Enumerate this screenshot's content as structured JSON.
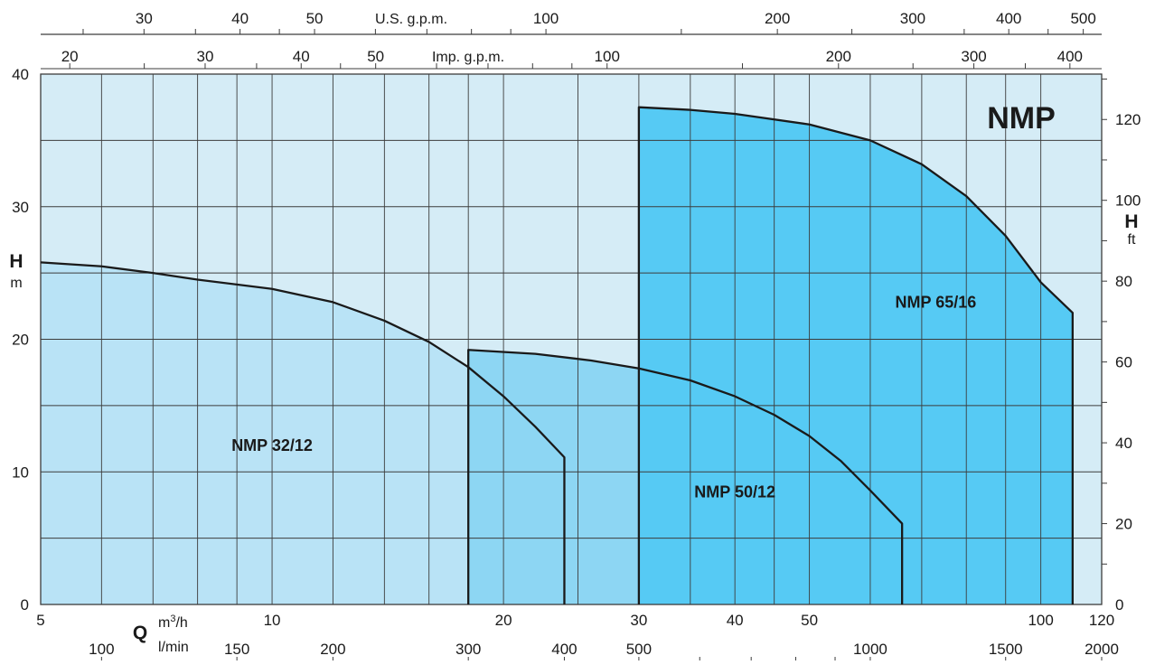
{
  "chart_data": {
    "type": "area",
    "title": "NMP",
    "colors": {
      "background": "#d5ecf6",
      "grid": "#3c3c3c",
      "curve": "#1a1a1a",
      "NMP 32/12": "#b9e3f6",
      "NMP 50/12": "#8dd6f3",
      "NMP 65/16": "#56caf4"
    },
    "x_scale": "log",
    "x_range_m3h": [
      5,
      120
    ],
    "y_left": {
      "symbol": "H",
      "unit": "m",
      "ylim": [
        0,
        40
      ],
      "ticks": [
        0,
        10,
        20,
        30,
        40
      ]
    },
    "y_right": {
      "symbol": "H",
      "unit": "ft",
      "ylim_ft": [
        0,
        131.2
      ],
      "ticks": [
        0,
        20,
        40,
        60,
        80,
        100,
        120
      ]
    },
    "x_axis_m3h": {
      "symbol": "Q",
      "unit_base": "m",
      "unit_sup": "3",
      "unit_rest": "/h",
      "ticks": [
        {
          "v": 5,
          "t": "5"
        },
        {
          "v": 10,
          "t": "10"
        },
        {
          "v": 20,
          "t": "20"
        },
        {
          "v": 30,
          "t": "30"
        },
        {
          "v": 40,
          "t": "40"
        },
        {
          "v": 50,
          "t": "50"
        },
        {
          "v": 100,
          "t": "100"
        },
        {
          "v": 120,
          "t": "120"
        }
      ]
    },
    "x_axis_lmin": {
      "unit": "l/min",
      "labels": [
        {
          "v": 100,
          "t": "100"
        },
        {
          "v": 150,
          "t": "150"
        },
        {
          "v": 200,
          "t": "200"
        },
        {
          "v": 300,
          "t": "300"
        },
        {
          "v": 400,
          "t": "400"
        },
        {
          "v": 500,
          "t": "500"
        },
        {
          "v": 1000,
          "t": "1000"
        },
        {
          "v": 1500,
          "t": "1500"
        },
        {
          "v": 2000,
          "t": "2000"
        }
      ],
      "minor": [
        600,
        700,
        800,
        900
      ]
    },
    "x_axis_usgpm": {
      "title": "U.S. g.p.m.",
      "labels": [
        {
          "v": 30,
          "t": "30"
        },
        {
          "v": 40,
          "t": "40"
        },
        {
          "v": 50,
          "t": "50"
        },
        {
          "v": 100,
          "t": "100"
        },
        {
          "v": 200,
          "t": "200"
        },
        {
          "v": 300,
          "t": "300"
        },
        {
          "v": 400,
          "t": "400"
        },
        {
          "v": 500,
          "t": "500"
        }
      ],
      "minor": [
        25,
        35,
        45,
        60,
        70,
        80,
        90,
        150,
        250,
        350,
        450
      ]
    },
    "x_axis_impgpm": {
      "title": "Imp. g.p.m.",
      "labels": [
        {
          "v": 20,
          "t": "20"
        },
        {
          "v": 30,
          "t": "30"
        },
        {
          "v": 40,
          "t": "40"
        },
        {
          "v": 50,
          "t": "50"
        },
        {
          "v": 100,
          "t": "100"
        },
        {
          "v": 200,
          "t": "200"
        },
        {
          "v": 300,
          "t": "300"
        },
        {
          "v": 400,
          "t": "400"
        }
      ],
      "minor": [
        25,
        35,
        45,
        60,
        70,
        80,
        90,
        150,
        250,
        350
      ]
    },
    "series": [
      {
        "name": "NMP 32/12",
        "label_at": [
          10,
          12
        ],
        "points": [
          [
            5,
            25.8
          ],
          [
            6,
            25.5
          ],
          [
            7,
            25
          ],
          [
            8,
            24.5
          ],
          [
            10,
            23.8
          ],
          [
            12,
            22.8
          ],
          [
            14,
            21.4
          ],
          [
            16,
            19.8
          ],
          [
            18,
            17.9
          ],
          [
            20,
            15.7
          ],
          [
            22,
            13.4
          ],
          [
            24,
            11.1
          ]
        ],
        "q_max": 24
      },
      {
        "name": "NMP 50/12",
        "label_at": [
          40,
          8.5
        ],
        "q_min": 18,
        "points": [
          [
            18,
            19.2
          ],
          [
            22,
            18.9
          ],
          [
            26,
            18.4
          ],
          [
            30,
            17.8
          ],
          [
            35,
            16.9
          ],
          [
            40,
            15.7
          ],
          [
            45,
            14.3
          ],
          [
            50,
            12.7
          ],
          [
            55,
            10.8
          ],
          [
            60,
            8.6
          ],
          [
            66,
            6.1
          ]
        ],
        "q_max": 66
      },
      {
        "name": "NMP 65/16",
        "label_at": [
          73,
          22.8
        ],
        "q_min": 30,
        "points": [
          [
            30,
            37.5
          ],
          [
            35,
            37.3
          ],
          [
            40,
            37.0
          ],
          [
            50,
            36.2
          ],
          [
            60,
            35.0
          ],
          [
            70,
            33.2
          ],
          [
            80,
            30.8
          ],
          [
            90,
            27.8
          ],
          [
            100,
            24.3
          ],
          [
            110,
            22.0
          ]
        ],
        "q_max": 110
      }
    ]
  }
}
